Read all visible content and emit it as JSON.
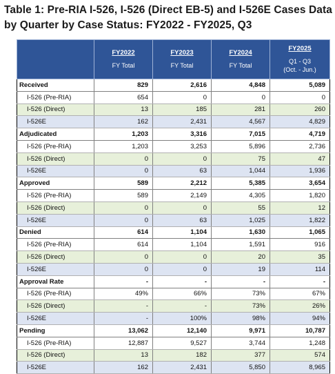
{
  "title": "Table 1: Pre-RIA I-526, I-526 (Direct EB-5) and I-526E Cases Data by Quarter by Case Status: FY2022 - FY2025, Q3",
  "header": {
    "corner": "",
    "columns": [
      {
        "year": "FY2022",
        "sub1": "FY Total",
        "sub2": ""
      },
      {
        "year": "FY2023",
        "sub1": "FY Total",
        "sub2": ""
      },
      {
        "year": "FY2024",
        "sub1": "FY Total",
        "sub2": ""
      },
      {
        "year": "FY2025",
        "sub1": "Q1 - Q3",
        "sub2": "(Oct. - Jun.)"
      }
    ]
  },
  "rows": [
    {
      "label": "Received",
      "type": "cat",
      "values": [
        "829",
        "2,616",
        "4,848",
        "5,089"
      ]
    },
    {
      "label": "I-526 (Pre-RIA)",
      "type": "w",
      "values": [
        "654",
        "0",
        "0",
        "0"
      ]
    },
    {
      "label": "I-526 (Direct)",
      "type": "g",
      "values": [
        "13",
        "185",
        "281",
        "260"
      ]
    },
    {
      "label": "I-526E",
      "type": "b",
      "values": [
        "162",
        "2,431",
        "4,567",
        "4,829"
      ]
    },
    {
      "label": "Adjudicated",
      "type": "cat",
      "values": [
        "1,203",
        "3,316",
        "7,015",
        "4,719"
      ]
    },
    {
      "label": "I-526 (Pre-RIA)",
      "type": "w",
      "values": [
        "1,203",
        "3,253",
        "5,896",
        "2,736"
      ]
    },
    {
      "label": "I-526 (Direct)",
      "type": "g",
      "values": [
        "0",
        "0",
        "75",
        "47"
      ]
    },
    {
      "label": "I-526E",
      "type": "b",
      "values": [
        "0",
        "63",
        "1,044",
        "1,936"
      ]
    },
    {
      "label": "Approved",
      "type": "cat",
      "values": [
        "589",
        "2,212",
        "5,385",
        "3,654"
      ]
    },
    {
      "label": "I-526 (Pre-RIA)",
      "type": "w",
      "values": [
        "589",
        "2,149",
        "4,305",
        "1,820"
      ]
    },
    {
      "label": "I-526 (Direct)",
      "type": "g",
      "values": [
        "0",
        "0",
        "55",
        "12"
      ]
    },
    {
      "label": "I-526E",
      "type": "b",
      "values": [
        "0",
        "63",
        "1,025",
        "1,822"
      ]
    },
    {
      "label": "Denied",
      "type": "cat",
      "values": [
        "614",
        "1,104",
        "1,630",
        "1,065"
      ]
    },
    {
      "label": "I-526 (Pre-RIA)",
      "type": "w",
      "values": [
        "614",
        "1,104",
        "1,591",
        "916"
      ]
    },
    {
      "label": "I-526 (Direct)",
      "type": "g",
      "values": [
        "0",
        "0",
        "20",
        "35"
      ]
    },
    {
      "label": "I-526E",
      "type": "b",
      "values": [
        "0",
        "0",
        "19",
        "114"
      ]
    },
    {
      "label": "Approval Rate",
      "type": "cat",
      "values": [
        "-",
        "-",
        "-",
        "-"
      ]
    },
    {
      "label": "I-526 (Pre-RIA)",
      "type": "w",
      "values": [
        "49%",
        "66%",
        "73%",
        "67%"
      ]
    },
    {
      "label": "I-526 (Direct)",
      "type": "g",
      "values": [
        "-",
        "-",
        "73%",
        "26%"
      ]
    },
    {
      "label": "I-526E",
      "type": "b",
      "values": [
        "-",
        "100%",
        "98%",
        "94%"
      ]
    },
    {
      "label": "Pending",
      "type": "cat",
      "values": [
        "13,062",
        "12,140",
        "9,971",
        "10,787"
      ]
    },
    {
      "label": "I-526 (Pre-RIA)",
      "type": "w",
      "values": [
        "12,887",
        "9,527",
        "3,744",
        "1,248"
      ]
    },
    {
      "label": "I-526 (Direct)",
      "type": "g",
      "values": [
        "13",
        "182",
        "377",
        "574"
      ]
    },
    {
      "label": "I-526E",
      "type": "b",
      "values": [
        "162",
        "2,431",
        "5,850",
        "8,965"
      ]
    }
  ]
}
